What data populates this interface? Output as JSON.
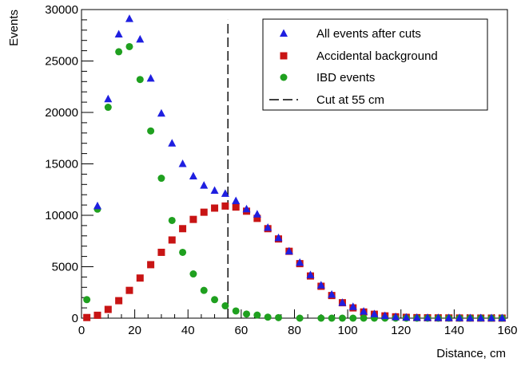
{
  "chart_data": {
    "type": "scatter",
    "xlabel": "Distance, cm",
    "ylabel": "Events",
    "xlim": [
      0,
      160
    ],
    "ylim": [
      0,
      30000
    ],
    "x_ticks": [
      0,
      20,
      40,
      60,
      80,
      100,
      120,
      140,
      160
    ],
    "y_ticks": [
      0,
      5000,
      10000,
      15000,
      20000,
      25000,
      30000
    ],
    "grid": false,
    "legend_position": "top-right",
    "series": [
      {
        "name": "All events after cuts",
        "marker": "triangle",
        "color": "#1f1fe0",
        "points": [
          [
            6,
            10900
          ],
          [
            10,
            21300
          ],
          [
            14,
            27600
          ],
          [
            18,
            29100
          ],
          [
            22,
            27100
          ],
          [
            26,
            23300
          ],
          [
            30,
            19900
          ],
          [
            34,
            17000
          ],
          [
            38,
            15000
          ],
          [
            42,
            13800
          ],
          [
            46,
            12900
          ],
          [
            50,
            12400
          ],
          [
            54,
            12100
          ],
          [
            58,
            11400
          ],
          [
            62,
            10600
          ],
          [
            66,
            10100
          ],
          [
            70,
            8800
          ],
          [
            74,
            7800
          ],
          [
            78,
            6500
          ],
          [
            82,
            5400
          ],
          [
            86,
            4200
          ],
          [
            90,
            3200
          ],
          [
            94,
            2300
          ],
          [
            98,
            1500
          ],
          [
            102,
            1100
          ],
          [
            106,
            650
          ],
          [
            110,
            400
          ],
          [
            114,
            220
          ],
          [
            118,
            120
          ],
          [
            122,
            70
          ],
          [
            126,
            50
          ],
          [
            130,
            40
          ],
          [
            134,
            30
          ],
          [
            138,
            20
          ],
          [
            142,
            15
          ],
          [
            146,
            10
          ],
          [
            150,
            10
          ],
          [
            154,
            5
          ],
          [
            158,
            5
          ]
        ]
      },
      {
        "name": "Accidental background",
        "marker": "square",
        "color": "#c81414",
        "points": [
          [
            2,
            60
          ],
          [
            6,
            280
          ],
          [
            10,
            850
          ],
          [
            14,
            1700
          ],
          [
            18,
            2700
          ],
          [
            22,
            3900
          ],
          [
            26,
            5200
          ],
          [
            30,
            6400
          ],
          [
            34,
            7600
          ],
          [
            38,
            8700
          ],
          [
            42,
            9600
          ],
          [
            46,
            10300
          ],
          [
            50,
            10700
          ],
          [
            54,
            10900
          ],
          [
            58,
            10800
          ],
          [
            62,
            10400
          ],
          [
            66,
            9700
          ],
          [
            70,
            8700
          ],
          [
            74,
            7700
          ],
          [
            78,
            6500
          ],
          [
            82,
            5300
          ],
          [
            86,
            4100
          ],
          [
            90,
            3100
          ],
          [
            94,
            2200
          ],
          [
            98,
            1500
          ],
          [
            102,
            1000
          ],
          [
            106,
            600
          ],
          [
            110,
            380
          ],
          [
            114,
            220
          ],
          [
            118,
            130
          ],
          [
            122,
            80
          ],
          [
            126,
            50
          ],
          [
            130,
            35
          ],
          [
            134,
            25
          ],
          [
            138,
            20
          ],
          [
            142,
            15
          ],
          [
            146,
            10
          ],
          [
            150,
            8
          ],
          [
            154,
            5
          ],
          [
            158,
            5
          ]
        ]
      },
      {
        "name": "IBD events",
        "marker": "circle",
        "color": "#1fa01f",
        "points": [
          [
            2,
            1800
          ],
          [
            6,
            10600
          ],
          [
            10,
            20500
          ],
          [
            14,
            25900
          ],
          [
            18,
            26400
          ],
          [
            22,
            23200
          ],
          [
            26,
            18200
          ],
          [
            30,
            13600
          ],
          [
            34,
            9500
          ],
          [
            38,
            6400
          ],
          [
            42,
            4300
          ],
          [
            46,
            2700
          ],
          [
            50,
            1800
          ],
          [
            54,
            1200
          ],
          [
            58,
            700
          ],
          [
            62,
            400
          ],
          [
            66,
            300
          ],
          [
            70,
            100
          ],
          [
            74,
            50
          ],
          [
            82,
            0
          ],
          [
            90,
            0
          ],
          [
            94,
            0
          ],
          [
            98,
            0
          ],
          [
            102,
            0
          ],
          [
            106,
            0
          ],
          [
            110,
            0
          ],
          [
            114,
            0
          ],
          [
            118,
            0
          ],
          [
            122,
            0
          ],
          [
            126,
            0
          ],
          [
            130,
            0
          ],
          [
            134,
            0
          ],
          [
            138,
            0
          ],
          [
            142,
            0
          ],
          [
            146,
            0
          ],
          [
            150,
            0
          ],
          [
            154,
            0
          ],
          [
            158,
            0
          ]
        ]
      }
    ],
    "cut_line": {
      "name": "Cut at 55 cm",
      "x": 55,
      "y_top": 29000,
      "style": "dashed"
    }
  }
}
